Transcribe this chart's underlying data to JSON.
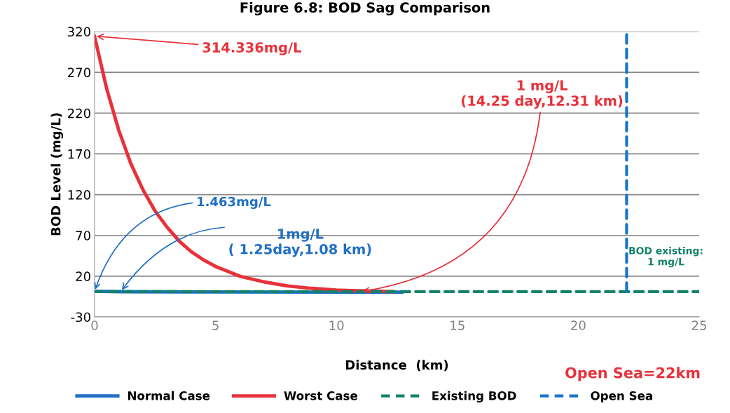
{
  "chart_data": {
    "type": "line",
    "title": "Figure 6.8: BOD Sag Comparison",
    "xlabel": "Distance  (km)",
    "ylabel": "BOD Level (mg/L)",
    "xlim": [
      0,
      25
    ],
    "xticks": [
      0,
      5,
      10,
      15,
      20,
      25
    ],
    "ylim": [
      -30,
      320
    ],
    "yticks": [
      -30,
      20,
      70,
      120,
      170,
      220,
      270,
      320
    ],
    "grid": "y",
    "legend": "bottom",
    "series": [
      {
        "name": "Normal Case",
        "color": "#1f6fc5",
        "line_style": "solid",
        "x": [
          0,
          1.08,
          5,
          10,
          12.7
        ],
        "values": [
          1.5,
          1,
          0.6,
          0.4,
          0.3
        ]
      },
      {
        "name": "Worst Case",
        "color": "#e8313a",
        "line_style": "solid",
        "x": [
          0,
          0.5,
          1,
          1.5,
          2,
          2.5,
          3,
          3.5,
          4,
          4.5,
          5,
          6,
          7,
          8,
          9,
          10,
          11,
          12.31
        ],
        "values": [
          314,
          250,
          199,
          158,
          126,
          100,
          80,
          63,
          50,
          40,
          32,
          20,
          13,
          8,
          5,
          3,
          2,
          1
        ]
      },
      {
        "name": "Existing BOD",
        "color": "#12826a",
        "line_style": "dashed",
        "x": [
          0,
          25
        ],
        "values": [
          1,
          1
        ]
      },
      {
        "name": "Open Sea",
        "color": "#1874cd",
        "line_style": "dashed",
        "x": [
          22,
          22
        ],
        "values": [
          1,
          320
        ]
      }
    ],
    "annotations": [
      {
        "text": "314.336mg/L",
        "x": 0,
        "y": 314.336
      },
      {
        "text": "1.463mg/L",
        "x": 0,
        "y": 1.463
      },
      {
        "text": "1mg/L\n( 1.25day,1.08 km)",
        "x": 1.08,
        "y": 1
      },
      {
        "text": "1 mg/L\n(14.25 day,12.31 km)",
        "x": 11,
        "y": 1
      },
      "BOD existing:\n1 mg/L",
      "Open Sea=22km"
    ]
  }
}
